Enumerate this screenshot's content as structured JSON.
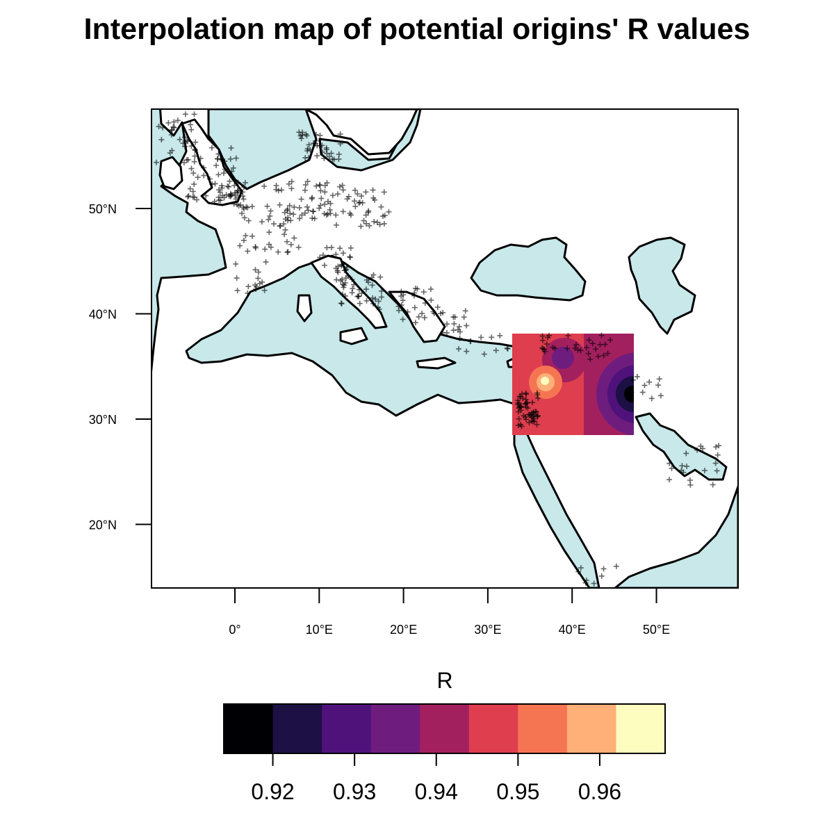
{
  "title": "Interpolation map of potential origins' R values",
  "colors": {
    "water": "#c8e8ea",
    "land": "#ffffff",
    "outline": "#000000"
  },
  "map": {
    "lon_range": [
      -10,
      60
    ],
    "lat_range": [
      14,
      59
    ],
    "x_ticks": [
      {
        "value": 0,
        "label": "0°"
      },
      {
        "value": 10,
        "label": "10°E"
      },
      {
        "value": 20,
        "label": "20°E"
      },
      {
        "value": 30,
        "label": "30°E"
      },
      {
        "value": 40,
        "label": "40°E"
      },
      {
        "value": 50,
        "label": "50°E"
      }
    ],
    "y_ticks": [
      {
        "value": 20,
        "label": "20°N"
      },
      {
        "value": 30,
        "label": "30°N"
      },
      {
        "value": 40,
        "label": "40°N"
      },
      {
        "value": 50,
        "label": "50°N"
      }
    ],
    "interpolation_extent": {
      "lon": [
        33,
        47.4
      ],
      "lat": [
        28.5,
        38.2
      ]
    }
  },
  "legend": {
    "title": "R",
    "bins": [
      {
        "min": 0.914,
        "max": 0.92,
        "color": "#000004"
      },
      {
        "min": 0.92,
        "max": 0.926,
        "color": "#1c1044"
      },
      {
        "min": 0.926,
        "max": 0.932,
        "color": "#4f127b"
      },
      {
        "min": 0.932,
        "max": 0.938,
        "color": "#6e1d7e"
      },
      {
        "min": 0.938,
        "max": 0.944,
        "color": "#a3205f"
      },
      {
        "min": 0.944,
        "max": 0.95,
        "color": "#de3e4e"
      },
      {
        "min": 0.95,
        "max": 0.956,
        "color": "#f57552"
      },
      {
        "min": 0.956,
        "max": 0.962,
        "color": "#feb078"
      },
      {
        "min": 0.962,
        "max": 0.968,
        "color": "#fcfdbf"
      }
    ],
    "ticks": [
      {
        "value": 0.92,
        "label": "0.92"
      },
      {
        "value": 0.93,
        "label": "0.93"
      },
      {
        "value": 0.94,
        "label": "0.94"
      },
      {
        "value": 0.95,
        "label": "0.95"
      },
      {
        "value": 0.96,
        "label": "0.96"
      }
    ]
  }
}
